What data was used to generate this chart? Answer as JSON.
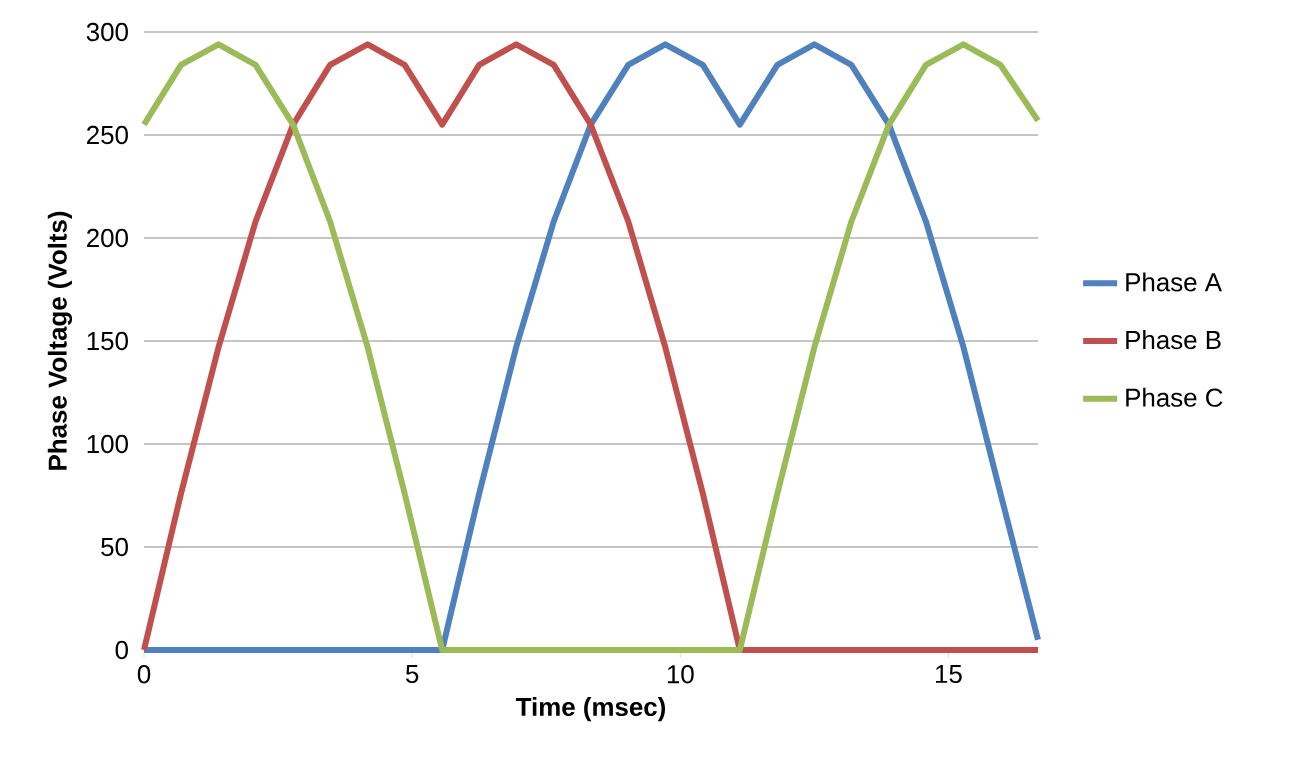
{
  "chart_data": {
    "type": "line",
    "xlabel": "Time  (msec)",
    "ylabel": "Phase Voltage (Volts)",
    "x": [
      0,
      0.69,
      1.39,
      2.08,
      2.78,
      3.47,
      4.17,
      4.86,
      5.56,
      6.25,
      6.94,
      7.64,
      8.33,
      9.03,
      9.72,
      10.42,
      11.11,
      11.81,
      12.5,
      13.19,
      13.89,
      14.58,
      15.28,
      15.97,
      16.67
    ],
    "series": [
      {
        "name": "Phase A",
        "color": "#4f81bd",
        "values": [
          0,
          0,
          0,
          0,
          0,
          0,
          0,
          0,
          0,
          76,
          147,
          208,
          255,
          284,
          294,
          284,
          255,
          284,
          294,
          284,
          255,
          208,
          147,
          76,
          5
        ]
      },
      {
        "name": "Phase B",
        "color": "#c0504d",
        "values": [
          0,
          76,
          147,
          208,
          255,
          284,
          294,
          284,
          255,
          284,
          294,
          284,
          255,
          208,
          147,
          76,
          0,
          0,
          0,
          0,
          0,
          0,
          0,
          0,
          0
        ]
      },
      {
        "name": "Phase C",
        "color": "#9bbb59",
        "values": [
          255,
          284,
          294,
          284,
          255,
          208,
          147,
          76,
          0,
          0,
          0,
          0,
          0,
          0,
          0,
          0,
          0,
          76,
          147,
          208,
          255,
          284,
          294,
          284,
          257
        ]
      }
    ],
    "xlim": [
      0,
      16.67
    ],
    "xticks": [
      0,
      5,
      10,
      15
    ],
    "ylim": [
      0,
      300
    ],
    "yticks": [
      0,
      50,
      100,
      150,
      200,
      250,
      300
    ],
    "grid": "y",
    "legend": "right",
    "marker": "none",
    "line_style": "solid"
  }
}
